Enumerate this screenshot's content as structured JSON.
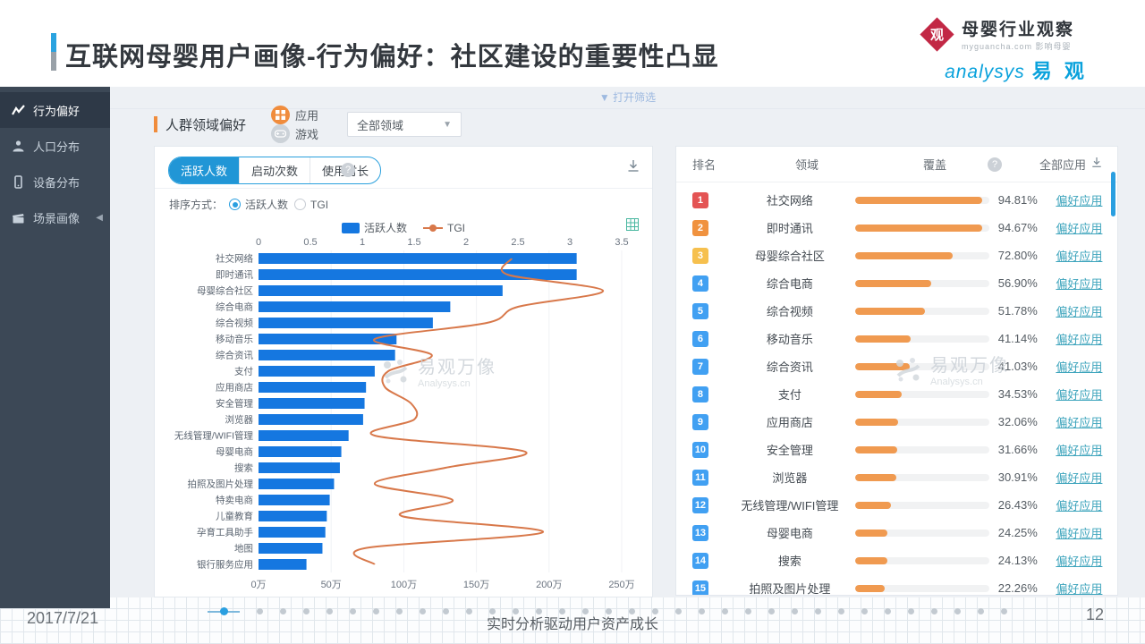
{
  "page": {
    "title": "互联网母婴用户画像-行为偏好：社区建设的重要性凸显"
  },
  "brand": {
    "guancha": {
      "badge_char": "观",
      "name": "母婴行业观察",
      "sub": "myguancha.com 影响母婴"
    },
    "analysys": {
      "name": "analysys",
      "cn": "易 观"
    }
  },
  "sidebar": {
    "items": [
      {
        "label": "行为偏好",
        "icon": "trend-icon",
        "active": true,
        "has_submenu": false
      },
      {
        "label": "人口分布",
        "icon": "population-icon",
        "active": false,
        "has_submenu": false
      },
      {
        "label": "设备分布",
        "icon": "device-icon",
        "active": false,
        "has_submenu": false
      },
      {
        "label": "场景画像",
        "icon": "scene-icon",
        "active": false,
        "has_submenu": true
      }
    ]
  },
  "toolbar": {
    "open_filter": "打开筛选",
    "section_title": "人群领域偏好",
    "type_options": [
      {
        "label": "应用",
        "selected": true
      },
      {
        "label": "游戏",
        "selected": false
      }
    ],
    "domain_select": {
      "value": "全部领域"
    }
  },
  "chart_card": {
    "tabs": [
      {
        "label": "活跃人数",
        "active": true
      },
      {
        "label": "启动次数",
        "active": false
      },
      {
        "label": "使用时长",
        "active": false
      }
    ],
    "sort_label": "排序方式：",
    "sort_options": [
      {
        "label": "活跃人数",
        "selected": true
      },
      {
        "label": "TGI",
        "selected": false
      }
    ]
  },
  "chart_data": {
    "type": "bar",
    "orientation": "horizontal",
    "title": "",
    "categories": [
      "社交网络",
      "即时通讯",
      "母婴综合社区",
      "综合电商",
      "综合视频",
      "移动音乐",
      "综合资讯",
      "支付",
      "应用商店",
      "安全管理",
      "浏览器",
      "无线管理/WIFI管理",
      "母婴电商",
      "搜索",
      "拍照及图片处理",
      "特卖电商",
      "儿童教育",
      "孕育工具助手",
      "地图",
      "银行服务应用"
    ],
    "series": [
      {
        "name": "活跃人数",
        "type": "bar",
        "axis": "bottom",
        "unit": "万",
        "color": "#1577e0",
        "values": [
          219,
          219,
          168,
          132,
          120,
          95,
          94,
          80,
          74,
          73,
          72,
          62,
          57,
          56,
          52,
          49,
          47,
          46,
          44,
          33
        ]
      },
      {
        "name": "TGI",
        "type": "line",
        "axis": "top",
        "color": "#d8784a",
        "values": [
          2.44,
          2.4,
          3.32,
          2.5,
          2.2,
          1.12,
          1.67,
          1.25,
          1.22,
          1.47,
          1.5,
          1.12,
          2.57,
          1.8,
          1.12,
          1.87,
          1.38,
          2.74,
          1.02,
          1.12
        ]
      }
    ],
    "top_axis": {
      "min": 0,
      "max": 3.5,
      "step": 0.5,
      "labels": [
        "0",
        "0.5",
        "1",
        "1.5",
        "2",
        "2.5",
        "3",
        "3.5"
      ]
    },
    "bottom_axis": {
      "min": 0,
      "max": 250,
      "step": 50,
      "labels": [
        "0万",
        "50万",
        "100万",
        "150万",
        "200万",
        "250万"
      ]
    },
    "grid": true,
    "legend_position": "top-center"
  },
  "watermark": {
    "cn": "易观万像",
    "en": "Analysys.cn"
  },
  "table": {
    "headers": {
      "rank": "排名",
      "domain": "领域",
      "coverage": "覆盖",
      "apps": "全部应用"
    },
    "link_label": "偏好应用",
    "bar_color": "#f09a50",
    "rank_colors": {
      "r1": "#e45454",
      "r2": "#f0923f",
      "r3": "#f6c04e",
      "default": "#41a0f2"
    },
    "rows": [
      {
        "rank": 1,
        "domain": "社交网络",
        "coverage": "94.81%",
        "pct": 94.81
      },
      {
        "rank": 2,
        "domain": "即时通讯",
        "coverage": "94.67%",
        "pct": 94.67
      },
      {
        "rank": 3,
        "domain": "母婴综合社区",
        "coverage": "72.80%",
        "pct": 72.8
      },
      {
        "rank": 4,
        "domain": "综合电商",
        "coverage": "56.90%",
        "pct": 56.9
      },
      {
        "rank": 5,
        "domain": "综合视频",
        "coverage": "51.78%",
        "pct": 51.78
      },
      {
        "rank": 6,
        "domain": "移动音乐",
        "coverage": "41.14%",
        "pct": 41.14
      },
      {
        "rank": 7,
        "domain": "综合资讯",
        "coverage": "41.03%",
        "pct": 41.03
      },
      {
        "rank": 8,
        "domain": "支付",
        "coverage": "34.53%",
        "pct": 34.53
      },
      {
        "rank": 9,
        "domain": "应用商店",
        "coverage": "32.06%",
        "pct": 32.06
      },
      {
        "rank": 10,
        "domain": "安全管理",
        "coverage": "31.66%",
        "pct": 31.66
      },
      {
        "rank": 11,
        "domain": "浏览器",
        "coverage": "30.91%",
        "pct": 30.91
      },
      {
        "rank": 12,
        "domain": "无线管理/WIFI管理",
        "coverage": "26.43%",
        "pct": 26.43
      },
      {
        "rank": 13,
        "domain": "母婴电商",
        "coverage": "24.25%",
        "pct": 24.25
      },
      {
        "rank": 14,
        "domain": "搜索",
        "coverage": "24.13%",
        "pct": 24.13
      },
      {
        "rank": 15,
        "domain": "拍照及图片处理",
        "coverage": "22.26%",
        "pct": 22.26
      }
    ]
  },
  "pagination": {
    "count": 34,
    "active": 0
  },
  "footer": {
    "date": "2017/7/21",
    "slogan": "实时分析驱动用户资产成长",
    "page": "12"
  }
}
